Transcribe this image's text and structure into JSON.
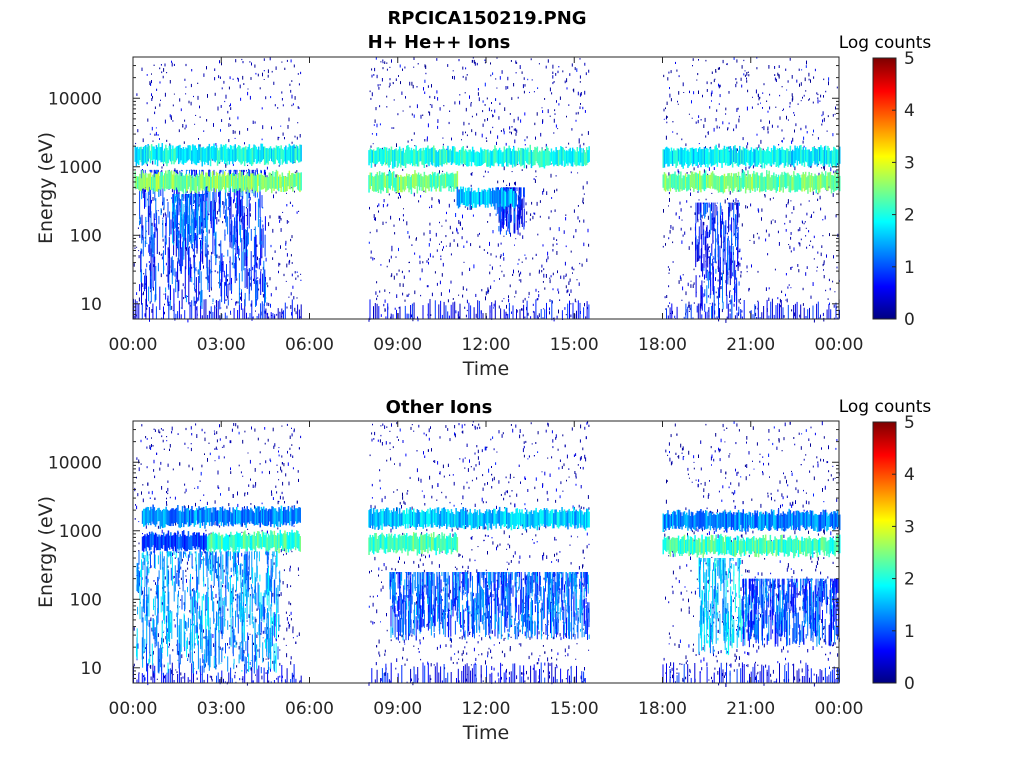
{
  "figure": {
    "title": "RPCICA150219.PNG"
  },
  "chart_data": [
    {
      "type": "heatmap",
      "title": "H+ He++ Ions",
      "xlabel": "Time",
      "ylabel": "Energy (eV)",
      "x_ticks": [
        "00:00",
        "03:00",
        "06:00",
        "09:00",
        "12:00",
        "15:00",
        "18:00",
        "21:00",
        "00:00"
      ],
      "x_range_hours": [
        0,
        24
      ],
      "y_ticks": [
        "10",
        "100",
        "1000",
        "10000"
      ],
      "y_scale": "log",
      "y_range_eV": [
        6,
        40000
      ],
      "colorbar": {
        "label": "Log counts",
        "ticks": [
          "0",
          "1",
          "2",
          "3",
          "4",
          "5"
        ],
        "range": [
          0,
          5
        ],
        "colormap": "jet"
      },
      "data_gaps_hours": [
        [
          5.7,
          8.0
        ],
        [
          15.5,
          18.0
        ]
      ],
      "bands": [
        {
          "t_start": 0.05,
          "t_end": 5.7,
          "energy_eV": 600,
          "log_counts": 2.5
        },
        {
          "t_start": 0.05,
          "t_end": 5.7,
          "energy_eV": 1500,
          "log_counts": 1.9
        },
        {
          "t_start": 8.0,
          "t_end": 11.0,
          "energy_eV": 600,
          "log_counts": 2.4
        },
        {
          "t_start": 11.0,
          "t_end": 13.0,
          "energy_eV": 350,
          "log_counts": 1.5
        },
        {
          "t_start": 8.0,
          "t_end": 15.5,
          "energy_eV": 1400,
          "log_counts": 2.0
        },
        {
          "t_start": 18.0,
          "t_end": 24.0,
          "energy_eV": 600,
          "log_counts": 2.4
        },
        {
          "t_start": 18.0,
          "t_end": 24.0,
          "energy_eV": 1400,
          "log_counts": 1.8
        }
      ],
      "bursts": [
        {
          "t_start": 0.2,
          "t_end": 4.5,
          "e_low_eV": 8,
          "e_high_eV": 900,
          "log_counts": 0.9
        },
        {
          "t_start": 1.3,
          "t_end": 2.5,
          "e_low_eV": 60,
          "e_high_eV": 400,
          "log_counts": 1.1
        },
        {
          "t_start": 12.3,
          "t_end": 13.3,
          "e_low_eV": 100,
          "e_high_eV": 500,
          "log_counts": 0.8
        },
        {
          "t_start": 19.1,
          "t_end": 20.6,
          "e_low_eV": 6,
          "e_high_eV": 300,
          "log_counts": 0.8
        }
      ]
    },
    {
      "type": "heatmap",
      "title": "Other Ions",
      "xlabel": "Time",
      "ylabel": "Energy (eV)",
      "x_ticks": [
        "00:00",
        "03:00",
        "06:00",
        "09:00",
        "12:00",
        "15:00",
        "18:00",
        "21:00",
        "00:00"
      ],
      "x_range_hours": [
        0,
        24
      ],
      "y_ticks": [
        "10",
        "100",
        "1000",
        "10000"
      ],
      "y_scale": "log",
      "y_range_eV": [
        6,
        40000
      ],
      "colorbar": {
        "label": "Log counts",
        "ticks": [
          "0",
          "1",
          "2",
          "3",
          "4",
          "5"
        ],
        "range": [
          0,
          5
        ],
        "colormap": "jet"
      },
      "data_gaps_hours": [
        [
          5.7,
          8.0
        ],
        [
          15.5,
          18.0
        ]
      ],
      "bands": [
        {
          "t_start": 2.5,
          "t_end": 5.7,
          "energy_eV": 700,
          "log_counts": 2.2
        },
        {
          "t_start": 0.3,
          "t_end": 2.5,
          "energy_eV": 700,
          "log_counts": 1.0
        },
        {
          "t_start": 0.3,
          "t_end": 5.7,
          "energy_eV": 1600,
          "log_counts": 1.3
        },
        {
          "t_start": 8.0,
          "t_end": 11.0,
          "energy_eV": 650,
          "log_counts": 2.2
        },
        {
          "t_start": 8.0,
          "t_end": 15.5,
          "energy_eV": 1500,
          "log_counts": 1.6
        },
        {
          "t_start": 18.0,
          "t_end": 24.0,
          "energy_eV": 600,
          "log_counts": 2.2
        },
        {
          "t_start": 18.0,
          "t_end": 24.0,
          "energy_eV": 1400,
          "log_counts": 1.3
        }
      ],
      "bursts": [
        {
          "t_start": 0.1,
          "t_end": 5.0,
          "e_low_eV": 8,
          "e_high_eV": 500,
          "log_counts": 1.4
        },
        {
          "t_start": 8.7,
          "t_end": 15.5,
          "e_low_eV": 25,
          "e_high_eV": 250,
          "log_counts": 1.1
        },
        {
          "t_start": 19.2,
          "t_end": 20.7,
          "e_low_eV": 15,
          "e_high_eV": 400,
          "log_counts": 1.6
        },
        {
          "t_start": 20.7,
          "t_end": 24.0,
          "e_low_eV": 20,
          "e_high_eV": 200,
          "log_counts": 1.0
        }
      ]
    }
  ]
}
